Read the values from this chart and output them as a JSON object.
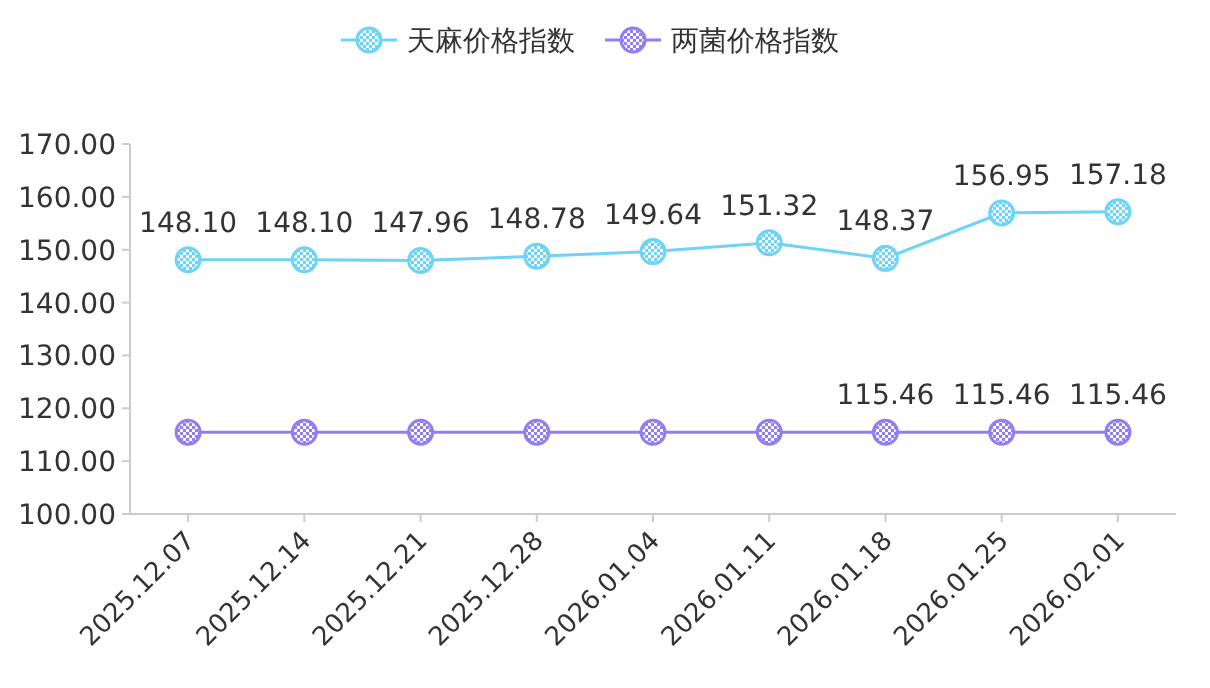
{
  "chart_data": {
    "type": "line",
    "categories": [
      "2025.12.07",
      "2025.12.14",
      "2025.12.21",
      "2025.12.28",
      "2026.01.04",
      "2026.01.11",
      "2026.01.18",
      "2026.01.25",
      "2026.02.01"
    ],
    "series": [
      {
        "name": "天麻价格指数",
        "color": "#6fd3f7",
        "values": [
          148.1,
          148.1,
          147.96,
          148.78,
          149.64,
          151.32,
          148.37,
          156.95,
          157.18
        ],
        "value_labels": [
          "148.10",
          "148.10",
          "147.96",
          "148.78",
          "149.64",
          "151.32",
          "148.37",
          "156.95",
          "157.18"
        ]
      },
      {
        "name": "两菌价格指数",
        "color": "#8f7ff0",
        "values": [
          115.46,
          115.46,
          115.46,
          115.46,
          115.46,
          115.46,
          115.46,
          115.46,
          115.46
        ],
        "value_labels": [
          null,
          null,
          null,
          null,
          null,
          null,
          "115.46",
          "115.46",
          "115.46"
        ]
      }
    ],
    "ylim": [
      100,
      170
    ],
    "yticks": [
      {
        "value": 100,
        "label": "100.00"
      },
      {
        "value": 110,
        "label": "110.00"
      },
      {
        "value": 120,
        "label": "120.00"
      },
      {
        "value": 130,
        "label": "130.00"
      },
      {
        "value": 140,
        "label": "140.00"
      },
      {
        "value": 150,
        "label": "150.00"
      },
      {
        "value": 160,
        "label": "160.00"
      },
      {
        "value": 170,
        "label": "170.00"
      }
    ],
    "legend": "top",
    "marker": "circle",
    "line_style": "solid"
  }
}
